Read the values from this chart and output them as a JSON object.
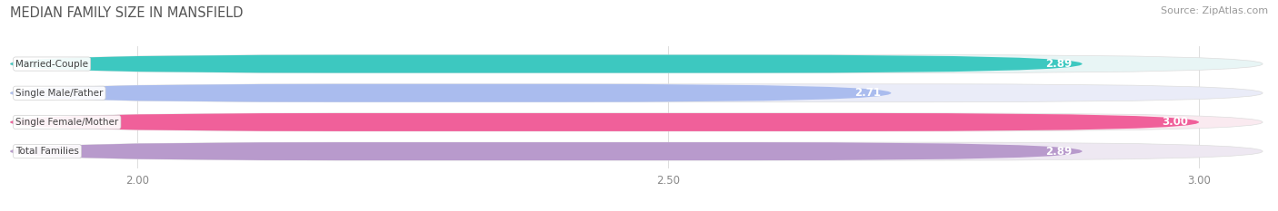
{
  "title": "MEDIAN FAMILY SIZE IN MANSFIELD",
  "source": "Source: ZipAtlas.com",
  "categories": [
    "Married-Couple",
    "Single Male/Father",
    "Single Female/Mother",
    "Total Families"
  ],
  "values": [
    2.89,
    2.71,
    3.0,
    2.89
  ],
  "bar_colors": [
    "#3dc8c0",
    "#aabcee",
    "#f0609a",
    "#b89acc"
  ],
  "bar_bg_colors": [
    "#e8f5f5",
    "#eaecf8",
    "#faeaf0",
    "#eee8f2"
  ],
  "xlim": [
    1.88,
    3.06
  ],
  "xticks": [
    2.0,
    2.5,
    3.0
  ],
  "xtick_labels": [
    "2.00",
    "2.50",
    "3.00"
  ],
  "figsize": [
    14.06,
    2.33
  ],
  "dpi": 100,
  "title_fontsize": 10.5,
  "source_fontsize": 8,
  "bar_label_fontsize": 8.5,
  "category_fontsize": 7.5,
  "tick_fontsize": 8.5,
  "bar_height": 0.62,
  "bar_gap": 1.0
}
